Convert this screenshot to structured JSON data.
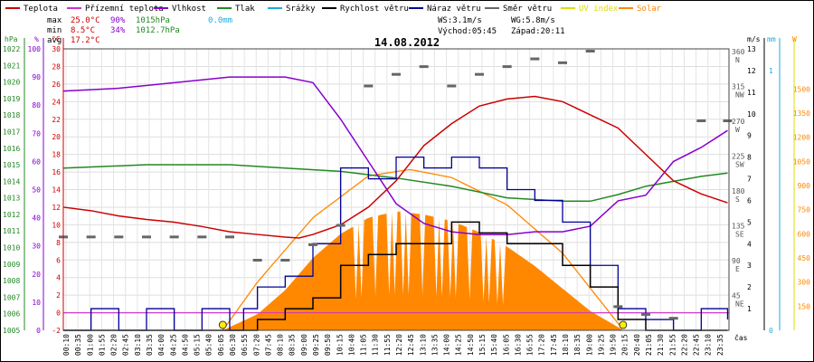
{
  "chart_data": {
    "type": "line",
    "title": "14.08.2012",
    "legend": [
      {
        "label": "Teplota",
        "color": "#cc0000"
      },
      {
        "label": "Přízemní teplota",
        "color": "#cc33cc"
      },
      {
        "label": "Vlhkost",
        "color": "#8800cc"
      },
      {
        "label": "Tlak",
        "color": "#228822"
      },
      {
        "label": "Srážky",
        "color": "#22aadd"
      },
      {
        "label": "Rychlost větru",
        "color": "#000000"
      },
      {
        "label": "Náraz větru",
        "color": "#000099"
      },
      {
        "label": "Směr větru",
        "color": "#666666"
      },
      {
        "label": "UV index",
        "color": "#dddd00"
      },
      {
        "label": "Solar",
        "color": "#ff8800"
      }
    ],
    "stats": {
      "max_label": "max",
      "max_temp": "25.0°C",
      "max_hum": "90%",
      "max_press": "1015hPa",
      "max_rain": "0.0mm",
      "min_label": "min",
      "min_temp": "8.5°C",
      "min_hum": "34%",
      "min_press": "1012.7hPa",
      "avg_label": "avg",
      "avg_temp": "17.2°C",
      "ws": "WS:3.1m/s",
      "wg": "WG:5.8m/s",
      "sunrise": "Východ:05:45",
      "sunset": "Západ:20:11"
    },
    "axes": {
      "pressure": {
        "unit": "hPa",
        "range": [
          1005,
          1022
        ],
        "ticks": [
          1022,
          1021,
          1020,
          1019,
          1018,
          1017,
          1016,
          1015,
          1014,
          1013,
          1012,
          1011,
          1010,
          1009,
          1008,
          1007,
          1006,
          1005
        ]
      },
      "humidity": {
        "unit": "%",
        "range": [
          0,
          100
        ],
        "ticks": [
          100,
          90,
          80,
          70,
          60,
          50,
          40,
          30,
          20,
          10,
          0
        ]
      },
      "temperature": {
        "unit": "°C",
        "range": [
          -2,
          30
        ],
        "ticks": [
          30,
          28,
          26,
          24,
          22,
          20,
          18,
          16,
          14,
          12,
          10,
          8,
          6,
          4,
          2,
          0,
          -2
        ]
      },
      "direction": {
        "unit": "",
        "ticks": [
          {
            "deg": "360",
            "dir": "N"
          },
          {
            "deg": "315",
            "dir": "NW"
          },
          {
            "deg": "270",
            "dir": "W"
          },
          {
            "deg": "225",
            "dir": "SW"
          },
          {
            "deg": "180",
            "dir": "S"
          },
          {
            "deg": "135",
            "dir": "SE"
          },
          {
            "deg": "90",
            "dir": "E"
          },
          {
            "deg": "45",
            "dir": "NE"
          }
        ]
      },
      "wind": {
        "unit": "m/s",
        "range": [
          0,
          13
        ],
        "ticks": [
          13,
          12,
          11,
          10,
          9,
          8,
          7,
          6,
          5,
          4,
          3,
          2,
          1
        ]
      },
      "rain": {
        "unit": "mm",
        "ticks": [
          1,
          0
        ]
      },
      "solar": {
        "unit": "W",
        "range": [
          0,
          1750
        ],
        "ticks": [
          1500,
          1350,
          1200,
          1050,
          900,
          750,
          600,
          450,
          300,
          150
        ]
      },
      "x_unit": "čas",
      "x_ticks": [
        "00:10",
        "00:35",
        "01:00",
        "01:55",
        "02:20",
        "02:45",
        "03:10",
        "03:35",
        "04:00",
        "04:25",
        "04:50",
        "05:15",
        "05:40",
        "06:05",
        "06:30",
        "06:55",
        "07:20",
        "07:45",
        "08:10",
        "08:35",
        "09:00",
        "09:25",
        "09:50",
        "10:15",
        "10:40",
        "11:05",
        "11:30",
        "11:55",
        "12:20",
        "12:45",
        "13:10",
        "13:35",
        "14:00",
        "14:25",
        "14:50",
        "15:15",
        "15:40",
        "16:05",
        "16:30",
        "16:55",
        "17:20",
        "17:45",
        "18:10",
        "18:35",
        "19:00",
        "19:25",
        "19:50",
        "20:15",
        "20:40",
        "21:05",
        "21:30",
        "21:55",
        "22:20",
        "22:45",
        "23:10",
        "23:35"
      ]
    },
    "series": {
      "temperature": [
        [
          0,
          12
        ],
        [
          1,
          11.6
        ],
        [
          2,
          11
        ],
        [
          3,
          10.6
        ],
        [
          4,
          10.3
        ],
        [
          5,
          9.8
        ],
        [
          6,
          9.2
        ],
        [
          7,
          8.9
        ],
        [
          8,
          8.6
        ],
        [
          8.5,
          8.5
        ],
        [
          9,
          8.9
        ],
        [
          10,
          10
        ],
        [
          11,
          12
        ],
        [
          12,
          15
        ],
        [
          13,
          19
        ],
        [
          14,
          21.5
        ],
        [
          15,
          23.5
        ],
        [
          16,
          24.3
        ],
        [
          17,
          24.6
        ],
        [
          18,
          24
        ],
        [
          19,
          22.5
        ],
        [
          20,
          21
        ],
        [
          21,
          18
        ],
        [
          22,
          15
        ],
        [
          23,
          13.5
        ],
        [
          23.95,
          12.5
        ]
      ],
      "ground_temperature": [
        [
          0,
          0
        ],
        [
          23.95,
          0
        ]
      ],
      "humidity": [
        [
          0,
          85
        ],
        [
          2,
          86
        ],
        [
          4,
          88
        ],
        [
          6,
          90
        ],
        [
          8,
          90
        ],
        [
          9,
          88
        ],
        [
          10,
          75
        ],
        [
          11,
          60
        ],
        [
          12,
          45
        ],
        [
          13,
          38
        ],
        [
          14,
          35
        ],
        [
          15,
          34
        ],
        [
          16,
          34
        ],
        [
          17,
          35
        ],
        [
          18,
          35
        ],
        [
          19,
          37
        ],
        [
          20,
          46
        ],
        [
          21,
          48
        ],
        [
          22,
          60
        ],
        [
          23,
          65
        ],
        [
          23.95,
          71
        ]
      ],
      "pressure": [
        [
          0,
          1014.8
        ],
        [
          3,
          1015
        ],
        [
          6,
          1015
        ],
        [
          8,
          1014.8
        ],
        [
          10,
          1014.6
        ],
        [
          12,
          1014.2
        ],
        [
          14,
          1013.7
        ],
        [
          16,
          1013
        ],
        [
          18,
          1012.8
        ],
        [
          19,
          1012.8
        ],
        [
          20,
          1013.2
        ],
        [
          21,
          1013.7
        ],
        [
          22,
          1014
        ],
        [
          23,
          1014.3
        ],
        [
          23.95,
          1014.5
        ]
      ],
      "rain": [
        [
          0,
          0
        ],
        [
          23.95,
          0
        ]
      ],
      "wind_speed": [
        [
          0,
          0
        ],
        [
          6.5,
          0
        ],
        [
          7,
          0.5
        ],
        [
          8,
          1
        ],
        [
          9,
          1.5
        ],
        [
          10,
          3
        ],
        [
          11,
          3.5
        ],
        [
          12,
          4
        ],
        [
          13,
          4
        ],
        [
          14,
          5
        ],
        [
          15,
          4.5
        ],
        [
          16,
          4
        ],
        [
          17,
          4
        ],
        [
          18,
          3
        ],
        [
          19,
          2
        ],
        [
          20,
          0.5
        ],
        [
          21,
          0
        ],
        [
          23.95,
          0
        ]
      ],
      "wind_gust": [
        [
          0,
          0
        ],
        [
          1,
          1
        ],
        [
          2,
          0
        ],
        [
          3,
          1
        ],
        [
          4,
          0
        ],
        [
          5,
          1
        ],
        [
          6,
          0
        ],
        [
          6.5,
          1
        ],
        [
          7,
          2
        ],
        [
          8,
          2.5
        ],
        [
          9,
          4
        ],
        [
          10,
          7.5
        ],
        [
          11,
          7
        ],
        [
          12,
          8
        ],
        [
          13,
          7.5
        ],
        [
          14,
          8
        ],
        [
          15,
          7.5
        ],
        [
          16,
          6.5
        ],
        [
          17,
          6
        ],
        [
          18,
          5
        ],
        [
          19,
          3
        ],
        [
          20,
          1
        ],
        [
          21,
          0.5
        ],
        [
          22,
          0
        ],
        [
          23,
          1
        ],
        [
          23.95,
          0.5
        ]
      ],
      "solar": [
        [
          5.75,
          0
        ],
        [
          7,
          100
        ],
        [
          8,
          250
        ],
        [
          9,
          450
        ],
        [
          10,
          600
        ],
        [
          11,
          700
        ],
        [
          12,
          740
        ],
        [
          13,
          720
        ],
        [
          14,
          680
        ],
        [
          15,
          610
        ],
        [
          16,
          520
        ],
        [
          17,
          400
        ],
        [
          18,
          260
        ],
        [
          19,
          120
        ],
        [
          20.2,
          0
        ]
      ],
      "solar_max": [
        [
          5.75,
          0
        ],
        [
          7,
          300
        ],
        [
          9,
          700
        ],
        [
          11,
          960
        ],
        [
          12.5,
          1000
        ],
        [
          14,
          950
        ],
        [
          16,
          780
        ],
        [
          18,
          480
        ],
        [
          20.2,
          0
        ]
      ],
      "wind_direction": [
        [
          0,
          120
        ],
        [
          1,
          120
        ],
        [
          2,
          120
        ],
        [
          3,
          120
        ],
        [
          4,
          120
        ],
        [
          5,
          120
        ],
        [
          6,
          120
        ],
        [
          7,
          90
        ],
        [
          8,
          90
        ],
        [
          9,
          110
        ],
        [
          10,
          135
        ],
        [
          11,
          315
        ],
        [
          12,
          330
        ],
        [
          13,
          340
        ],
        [
          14,
          315
        ],
        [
          15,
          330
        ],
        [
          16,
          340
        ],
        [
          17,
          350
        ],
        [
          18,
          345
        ],
        [
          19,
          360
        ],
        [
          20,
          30
        ],
        [
          21,
          20
        ],
        [
          22,
          15
        ],
        [
          23,
          270
        ],
        [
          23.95,
          270
        ]
      ]
    }
  }
}
